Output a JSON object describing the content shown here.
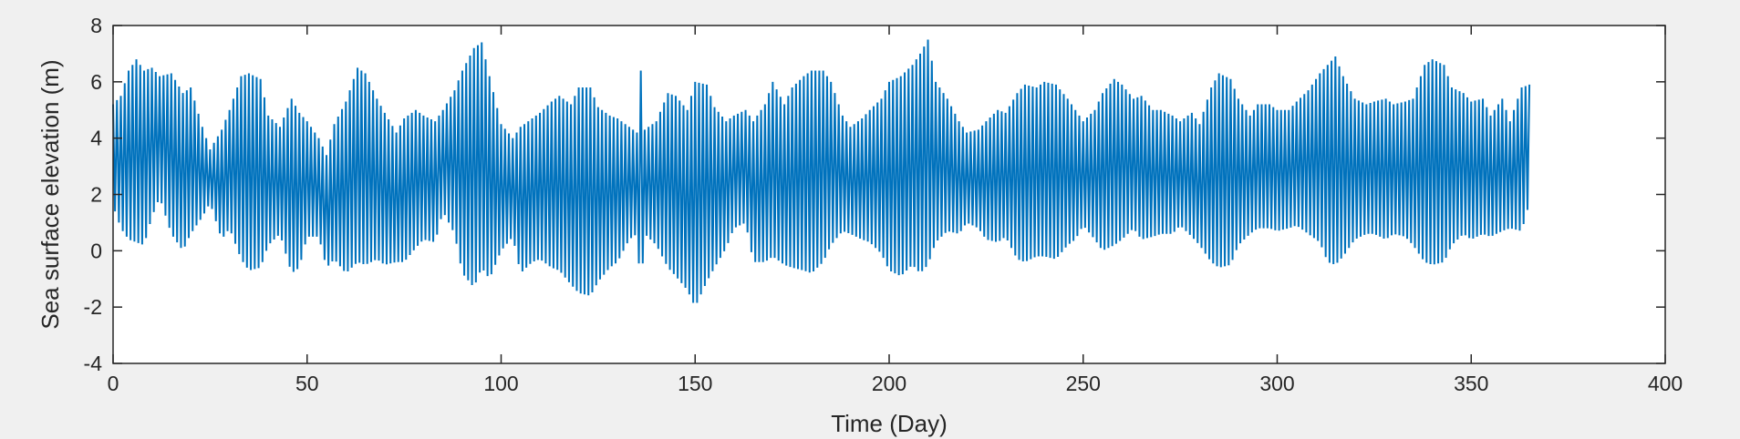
{
  "chart_data": {
    "type": "line",
    "title": "",
    "xlabel": "Time (Day)",
    "ylabel": "Sea surface elevation (m)",
    "xlim": [
      0,
      400
    ],
    "ylim": [
      -4,
      8
    ],
    "xticks": [
      0,
      50,
      100,
      150,
      200,
      250,
      300,
      350,
      400
    ],
    "yticks": [
      -4,
      -2,
      0,
      2,
      4,
      6,
      8
    ],
    "grid": false,
    "legend": "none",
    "colors": {
      "series": "#0072BD",
      "axis": "#262626",
      "plot_background": "#ffffff",
      "figure_background": "#f0f0f0"
    },
    "series": [
      {
        "sampling_interval_days": 0.5,
        "note_hidden": "",
        "x_start": 0,
        "x_end": 365,
        "max_envelope": [
          [
            0,
            5.2
          ],
          [
            2,
            5.5
          ],
          [
            4,
            6.4
          ],
          [
            6,
            6.8
          ],
          [
            8,
            6.4
          ],
          [
            10,
            6.5
          ],
          [
            12,
            6.2
          ],
          [
            15,
            6.3
          ],
          [
            18,
            5.6
          ],
          [
            20,
            5.8
          ],
          [
            23,
            4.4
          ],
          [
            25,
            3.6
          ],
          [
            28,
            4.3
          ],
          [
            30,
            5.0
          ],
          [
            33,
            6.2
          ],
          [
            35,
            6.3
          ],
          [
            38,
            6.1
          ],
          [
            40,
            4.8
          ],
          [
            43,
            4.4
          ],
          [
            46,
            5.4
          ],
          [
            48,
            4.9
          ],
          [
            50,
            4.6
          ],
          [
            53,
            4.0
          ],
          [
            55,
            3.4
          ],
          [
            57,
            4.5
          ],
          [
            60,
            5.3
          ],
          [
            63,
            6.5
          ],
          [
            65,
            6.3
          ],
          [
            68,
            5.4
          ],
          [
            70,
            4.9
          ],
          [
            73,
            4.2
          ],
          [
            75,
            4.7
          ],
          [
            78,
            5.0
          ],
          [
            80,
            4.8
          ],
          [
            83,
            4.6
          ],
          [
            85,
            5.0
          ],
          [
            88,
            5.7
          ],
          [
            90,
            6.4
          ],
          [
            93,
            7.2
          ],
          [
            95,
            7.4
          ],
          [
            97,
            6.2
          ],
          [
            100,
            4.5
          ],
          [
            103,
            4.0
          ],
          [
            105,
            4.4
          ],
          [
            108,
            4.7
          ],
          [
            110,
            4.9
          ],
          [
            113,
            5.3
          ],
          [
            115,
            5.5
          ],
          [
            118,
            5.2
          ],
          [
            120,
            5.8
          ],
          [
            123,
            5.8
          ],
          [
            125,
            5.1
          ],
          [
            128,
            4.8
          ],
          [
            130,
            4.7
          ],
          [
            133,
            4.4
          ],
          [
            135,
            4.2
          ],
          [
            136,
            6.4
          ],
          [
            137,
            4.3
          ],
          [
            140,
            4.6
          ],
          [
            143,
            5.6
          ],
          [
            145,
            5.5
          ],
          [
            148,
            5.0
          ],
          [
            150,
            6.0
          ],
          [
            153,
            5.9
          ],
          [
            155,
            5.1
          ],
          [
            158,
            4.6
          ],
          [
            160,
            4.8
          ],
          [
            163,
            5.0
          ],
          [
            165,
            4.6
          ],
          [
            168,
            5.2
          ],
          [
            170,
            6.0
          ],
          [
            173,
            5.2
          ],
          [
            175,
            5.8
          ],
          [
            178,
            6.2
          ],
          [
            180,
            6.4
          ],
          [
            183,
            6.4
          ],
          [
            185,
            6.0
          ],
          [
            188,
            4.8
          ],
          [
            190,
            4.4
          ],
          [
            193,
            4.7
          ],
          [
            195,
            5.0
          ],
          [
            198,
            5.4
          ],
          [
            200,
            6.0
          ],
          [
            203,
            6.2
          ],
          [
            206,
            6.6
          ],
          [
            208,
            7.0
          ],
          [
            210,
            7.5
          ],
          [
            212,
            6.0
          ],
          [
            215,
            5.4
          ],
          [
            218,
            4.6
          ],
          [
            220,
            4.2
          ],
          [
            223,
            4.3
          ],
          [
            225,
            4.6
          ],
          [
            228,
            5.0
          ],
          [
            230,
            4.9
          ],
          [
            233,
            5.6
          ],
          [
            235,
            5.9
          ],
          [
            238,
            5.8
          ],
          [
            240,
            6.0
          ],
          [
            243,
            5.9
          ],
          [
            246,
            5.4
          ],
          [
            248,
            5.0
          ],
          [
            250,
            4.6
          ],
          [
            253,
            5.0
          ],
          [
            255,
            5.6
          ],
          [
            258,
            6.1
          ],
          [
            260,
            5.9
          ],
          [
            263,
            5.4
          ],
          [
            265,
            5.5
          ],
          [
            268,
            5.0
          ],
          [
            270,
            5.0
          ],
          [
            273,
            4.8
          ],
          [
            275,
            4.6
          ],
          [
            278,
            4.9
          ],
          [
            280,
            4.5
          ],
          [
            283,
            5.8
          ],
          [
            285,
            6.3
          ],
          [
            288,
            6.1
          ],
          [
            290,
            5.4
          ],
          [
            293,
            4.8
          ],
          [
            295,
            5.2
          ],
          [
            298,
            5.2
          ],
          [
            300,
            5.0
          ],
          [
            303,
            5.0
          ],
          [
            305,
            5.3
          ],
          [
            308,
            5.7
          ],
          [
            311,
            6.3
          ],
          [
            313,
            6.6
          ],
          [
            315,
            6.9
          ],
          [
            317,
            6.2
          ],
          [
            320,
            5.4
          ],
          [
            323,
            5.2
          ],
          [
            325,
            5.3
          ],
          [
            328,
            5.4
          ],
          [
            330,
            5.2
          ],
          [
            333,
            5.3
          ],
          [
            335,
            5.4
          ],
          [
            338,
            6.6
          ],
          [
            340,
            6.8
          ],
          [
            343,
            6.6
          ],
          [
            345,
            5.8
          ],
          [
            348,
            5.6
          ],
          [
            350,
            5.3
          ],
          [
            353,
            5.4
          ],
          [
            355,
            4.8
          ],
          [
            358,
            5.4
          ],
          [
            360,
            4.6
          ],
          [
            363,
            5.8
          ],
          [
            365,
            5.9
          ]
        ],
        "min_envelope": [
          [
            0,
            1.6
          ],
          [
            2,
            0.8
          ],
          [
            4,
            0.4
          ],
          [
            6,
            0.3
          ],
          [
            8,
            0.2
          ],
          [
            10,
            1.2
          ],
          [
            12,
            1.9
          ],
          [
            15,
            0.6
          ],
          [
            18,
            0.0
          ],
          [
            20,
            0.6
          ],
          [
            23,
            1.2
          ],
          [
            25,
            1.7
          ],
          [
            28,
            0.4
          ],
          [
            30,
            0.8
          ],
          [
            33,
            -0.3
          ],
          [
            35,
            -0.7
          ],
          [
            38,
            -0.6
          ],
          [
            40,
            0.2
          ],
          [
            43,
            0.6
          ],
          [
            46,
            -0.8
          ],
          [
            48,
            -0.6
          ],
          [
            50,
            0.5
          ],
          [
            53,
            0.5
          ],
          [
            55,
            -0.6
          ],
          [
            57,
            -0.3
          ],
          [
            60,
            -0.8
          ],
          [
            63,
            -0.4
          ],
          [
            65,
            -0.5
          ],
          [
            68,
            -0.3
          ],
          [
            70,
            -0.5
          ],
          [
            73,
            -0.4
          ],
          [
            75,
            -0.4
          ],
          [
            78,
            0.1
          ],
          [
            80,
            0.4
          ],
          [
            83,
            0.3
          ],
          [
            85,
            1.4
          ],
          [
            88,
            0.6
          ],
          [
            90,
            -0.8
          ],
          [
            93,
            -1.3
          ],
          [
            95,
            -0.6
          ],
          [
            97,
            -1.0
          ],
          [
            100,
            0.0
          ],
          [
            103,
            0.5
          ],
          [
            105,
            -0.8
          ],
          [
            108,
            -0.4
          ],
          [
            110,
            -0.3
          ],
          [
            113,
            -0.6
          ],
          [
            115,
            -0.7
          ],
          [
            118,
            -1.2
          ],
          [
            120,
            -1.5
          ],
          [
            123,
            -1.6
          ],
          [
            125,
            -1.1
          ],
          [
            128,
            -0.6
          ],
          [
            130,
            -0.4
          ],
          [
            133,
            0.4
          ],
          [
            135,
            0.6
          ],
          [
            136,
            -1.5
          ],
          [
            137,
            0.6
          ],
          [
            140,
            0.2
          ],
          [
            143,
            -0.6
          ],
          [
            145,
            -0.9
          ],
          [
            148,
            -1.4
          ],
          [
            150,
            -2.0
          ],
          [
            153,
            -1.1
          ],
          [
            155,
            -0.6
          ],
          [
            158,
            0.1
          ],
          [
            160,
            0.8
          ],
          [
            163,
            1.0
          ],
          [
            165,
            -0.4
          ],
          [
            168,
            -0.4
          ],
          [
            170,
            -0.2
          ],
          [
            173,
            -0.5
          ],
          [
            175,
            -0.6
          ],
          [
            178,
            -0.7
          ],
          [
            180,
            -0.8
          ],
          [
            183,
            -0.4
          ],
          [
            185,
            0.2
          ],
          [
            188,
            0.7
          ],
          [
            190,
            0.6
          ],
          [
            193,
            0.4
          ],
          [
            195,
            0.3
          ],
          [
            198,
            -0.1
          ],
          [
            200,
            -0.7
          ],
          [
            203,
            -0.9
          ],
          [
            206,
            -0.5
          ],
          [
            208,
            -0.8
          ],
          [
            210,
            -0.5
          ],
          [
            212,
            0.3
          ],
          [
            215,
            0.7
          ],
          [
            218,
            0.6
          ],
          [
            220,
            1.0
          ],
          [
            223,
            0.8
          ],
          [
            225,
            0.4
          ],
          [
            228,
            0.3
          ],
          [
            230,
            0.5
          ],
          [
            233,
            -0.3
          ],
          [
            235,
            -0.4
          ],
          [
            238,
            -0.2
          ],
          [
            240,
            -0.2
          ],
          [
            243,
            -0.3
          ],
          [
            246,
            0.2
          ],
          [
            248,
            0.4
          ],
          [
            250,
            0.9
          ],
          [
            253,
            0.4
          ],
          [
            255,
            0.0
          ],
          [
            258,
            0.2
          ],
          [
            260,
            0.4
          ],
          [
            263,
            0.8
          ],
          [
            265,
            0.4
          ],
          [
            268,
            0.5
          ],
          [
            270,
            0.6
          ],
          [
            273,
            0.6
          ],
          [
            275,
            0.9
          ],
          [
            278,
            0.5
          ],
          [
            280,
            0.2
          ],
          [
            283,
            -0.4
          ],
          [
            285,
            -0.6
          ],
          [
            288,
            -0.5
          ],
          [
            290,
            0.2
          ],
          [
            293,
            0.6
          ],
          [
            295,
            0.8
          ],
          [
            298,
            0.8
          ],
          [
            300,
            0.7
          ],
          [
            303,
            0.8
          ],
          [
            305,
            0.9
          ],
          [
            308,
            0.6
          ],
          [
            311,
            0.3
          ],
          [
            313,
            -0.4
          ],
          [
            315,
            -0.5
          ],
          [
            317,
            -0.2
          ],
          [
            320,
            0.4
          ],
          [
            323,
            0.6
          ],
          [
            325,
            0.6
          ],
          [
            328,
            0.4
          ],
          [
            330,
            0.6
          ],
          [
            333,
            0.5
          ],
          [
            335,
            0.2
          ],
          [
            338,
            -0.4
          ],
          [
            340,
            -0.5
          ],
          [
            343,
            -0.4
          ],
          [
            345,
            0.2
          ],
          [
            348,
            0.6
          ],
          [
            350,
            0.4
          ],
          [
            353,
            0.6
          ],
          [
            355,
            0.5
          ],
          [
            358,
            0.7
          ],
          [
            360,
            0.8
          ],
          [
            363,
            0.7
          ],
          [
            365,
            1.7
          ]
        ]
      }
    ]
  }
}
